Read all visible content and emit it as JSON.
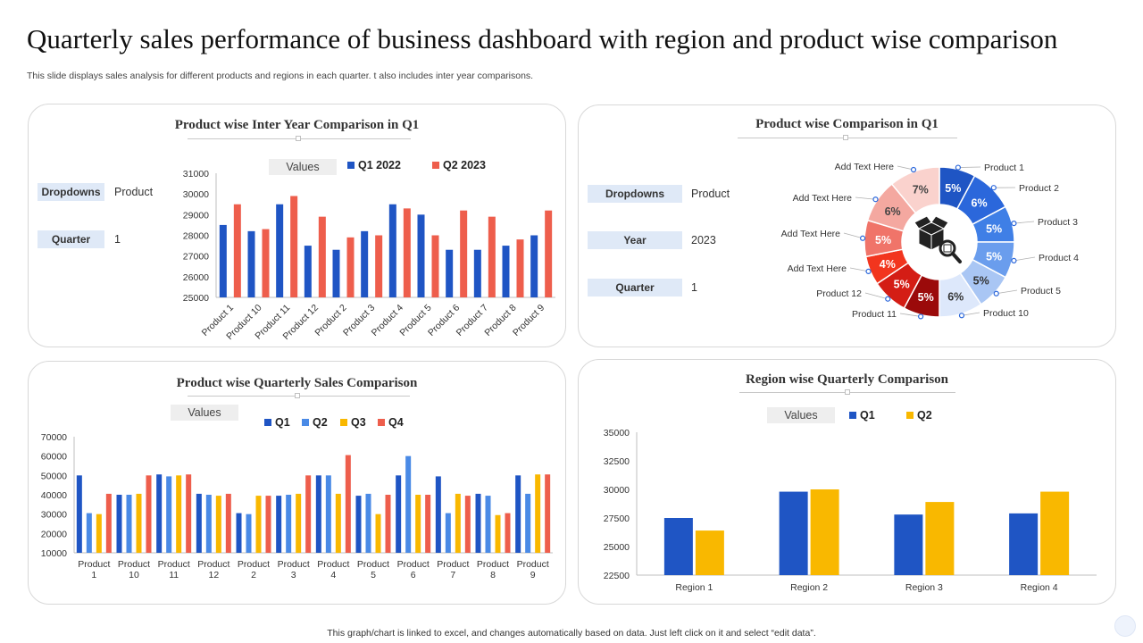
{
  "header": {
    "title": "Quarterly sales performance of business dashboard with region and product wise comparison",
    "subtitle": "This slide displays sales analysis for different products and regions in each quarter. t also includes inter year comparisons.",
    "footer": "This graph/chart is linked to excel, and changes automatically based on data. Just left click on it and select “edit data”."
  },
  "colors": {
    "blue": "#1f55c4",
    "red": "#ee5e4c",
    "q2": "#4a8ae6",
    "gold": "#f9b800"
  },
  "panel1": {
    "filters": [
      {
        "label": "Dropdowns",
        "value": "Product"
      },
      {
        "label": "Quarter",
        "value": "1"
      }
    ]
  },
  "panel2": {
    "filters": [
      {
        "label": "Dropdowns",
        "value": "Product"
      },
      {
        "label": "Year",
        "value": "2023"
      },
      {
        "label": "Quarter",
        "value": "1"
      }
    ]
  },
  "chart_data": [
    {
      "type": "bar",
      "title": "Product  wise Inter Year Comparison  in Q1",
      "values_label": "Values",
      "categories": [
        "Product 1",
        "Product 10",
        "Product 11",
        "Product 12",
        "Product 2",
        "Product 3",
        "Product 4",
        "Product 5",
        "Product 6",
        "Product 7",
        "Product 8",
        "Product 9"
      ],
      "series": [
        {
          "name": "Q1 2022",
          "values": [
            28500,
            28200,
            29500,
            27500,
            27300,
            28200,
            29500,
            29000,
            27300,
            27300,
            27500,
            28000
          ]
        },
        {
          "name": "Q2 2023",
          "values": [
            29500,
            28300,
            29900,
            28900,
            27900,
            28000,
            29300,
            28000,
            29200,
            28900,
            27800,
            29200
          ]
        }
      ],
      "ylim": [
        25000,
        31000
      ],
      "yticks": [
        "25000",
        "26000",
        "27000",
        "28000",
        "29000",
        "30000",
        "31000"
      ]
    },
    {
      "type": "pie",
      "title": "Product  wise Comparison  in Q1",
      "slices": [
        {
          "label": "Product 1",
          "value": 5,
          "text": "5%"
        },
        {
          "label": "Product 2",
          "value": 6,
          "text": "6%"
        },
        {
          "label": "Product 3",
          "value": 5,
          "text": "5%"
        },
        {
          "label": "Product 4",
          "value": 5,
          "text": "5%"
        },
        {
          "label": "Product 5",
          "value": 5,
          "text": "5%"
        },
        {
          "label": "Product 10",
          "value": 6,
          "text": "6%"
        },
        {
          "label": "Product 11",
          "value": 5,
          "text": "5%"
        },
        {
          "label": "Product 12",
          "value": 5,
          "text": "5%"
        },
        {
          "label": "Add Text Here",
          "value": 4,
          "text": "4%"
        },
        {
          "label": "Add Text Here",
          "value": 5,
          "text": "5%"
        },
        {
          "label": "Add Text Here",
          "value": 6,
          "text": "6%"
        },
        {
          "label": "Add Text Here",
          "value": 7,
          "text": "7%"
        }
      ]
    },
    {
      "type": "bar",
      "title": "Product  wise Quarterly  Sales Comparison",
      "values_label": "Values",
      "categories": [
        "Product 1",
        "Product 10",
        "Product 11",
        "Product 12",
        "Product 2",
        "Product 3",
        "Product 4",
        "Product 5",
        "Product 6",
        "Product 7",
        "Product 8",
        "Product 9"
      ],
      "category_lines": [
        [
          "Product",
          "1"
        ],
        [
          "Product",
          "10"
        ],
        [
          "Product",
          "11"
        ],
        [
          "Product",
          "12"
        ],
        [
          "Product",
          "2"
        ],
        [
          "Product",
          "3"
        ],
        [
          "Product",
          "4"
        ],
        [
          "Product",
          "5"
        ],
        [
          "Product",
          "6"
        ],
        [
          "Product",
          "7"
        ],
        [
          "Product",
          "8"
        ],
        [
          "Product",
          "9"
        ]
      ],
      "series": [
        {
          "name": "Q1",
          "values": [
            50000,
            40000,
            50500,
            40500,
            30500,
            39500,
            50000,
            39500,
            50000,
            49500,
            40500,
            50000
          ]
        },
        {
          "name": "Q2",
          "values": [
            30500,
            40000,
            49500,
            40000,
            30000,
            40000,
            50000,
            40500,
            60000,
            30500,
            39500,
            40500
          ]
        },
        {
          "name": "Q3",
          "values": [
            30000,
            40500,
            50000,
            39500,
            39500,
            40500,
            40500,
            30000,
            40000,
            40500,
            29500,
            50500
          ]
        },
        {
          "name": "Q4",
          "values": [
            40500,
            50000,
            50500,
            40500,
            39500,
            50000,
            60500,
            40000,
            40000,
            39500,
            30500,
            50500
          ]
        }
      ],
      "ylim": [
        10000,
        70000
      ],
      "yticks": [
        "10000",
        "20000",
        "30000",
        "40000",
        "50000",
        "60000",
        "70000"
      ]
    },
    {
      "type": "bar",
      "title": "Region wise Quarterly  Comparison",
      "values_label": "Values",
      "categories": [
        "Region 1",
        "Region 2",
        "Region 3",
        "Region 4"
      ],
      "series": [
        {
          "name": "Q1",
          "values": [
            27500,
            29800,
            27800,
            27900
          ]
        },
        {
          "name": "Q2",
          "values": [
            26400,
            30000,
            28900,
            29800
          ]
        }
      ],
      "ylim": [
        22500,
        35000
      ],
      "yticks": [
        "22500",
        "25000",
        "27500",
        "30000",
        "32500",
        "35000"
      ]
    }
  ]
}
